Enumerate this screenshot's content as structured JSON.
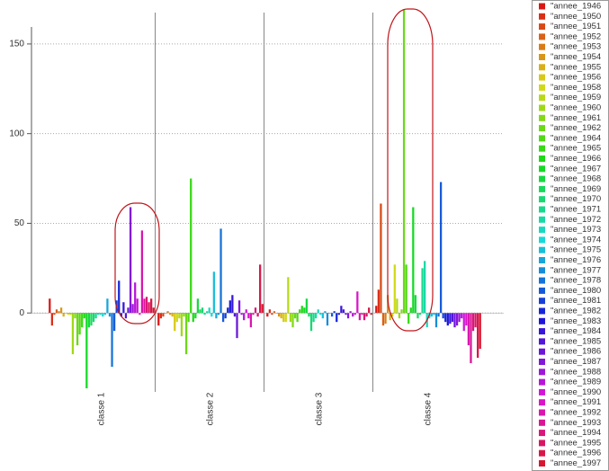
{
  "chart_data": {
    "type": "bar",
    "categories": [
      "classe 1",
      "classe 2",
      "classe 3",
      "classe 4"
    ],
    "ylim": [
      -44,
      170
    ],
    "yticks": [
      0,
      50,
      100,
      150
    ],
    "grid": true,
    "series": [
      {
        "name": "\"annee_1946",
        "color": "#d91616",
        "values": [
          8,
          -7,
          -2,
          4
        ]
      },
      {
        "name": "\"annee_1950",
        "color": "#d92f16",
        "values": [
          -7,
          -3,
          2,
          13
        ]
      },
      {
        "name": "\"annee_1951",
        "color": "#d94916",
        "values": [
          -1,
          -2,
          -1,
          61
        ]
      },
      {
        "name": "\"annee_1952",
        "color": "#d96216",
        "values": [
          2,
          0,
          1,
          -7
        ]
      },
      {
        "name": "\"annee_1953",
        "color": "#d97c16",
        "values": [
          1,
          1,
          0,
          -6
        ]
      },
      {
        "name": "\"annee_1954",
        "color": "#d99516",
        "values": [
          3,
          -1,
          -2,
          10
        ]
      },
      {
        "name": "\"annee_1955",
        "color": "#d9af16",
        "values": [
          -2,
          -2,
          -3,
          -4
        ]
      },
      {
        "name": "\"annee_1956",
        "color": "#d9c816",
        "values": [
          0,
          -10,
          -5,
          -2
        ]
      },
      {
        "name": "\"annee_1958",
        "color": "#d1d916",
        "values": [
          -1,
          -5,
          -5,
          27
        ]
      },
      {
        "name": "\"annee_1959",
        "color": "#b7d916",
        "values": [
          -1,
          -3,
          20,
          8
        ]
      },
      {
        "name": "\"annee_1960",
        "color": "#9ed916",
        "values": [
          -23,
          -13,
          -5,
          -3
        ]
      },
      {
        "name": "\"annee_1961",
        "color": "#84d916",
        "values": [
          -3,
          -2,
          -8,
          2
        ]
      },
      {
        "name": "\"annee_1962",
        "color": "#6bd916",
        "values": [
          -18,
          -23,
          -3,
          169
        ]
      },
      {
        "name": "\"annee_1964",
        "color": "#51d916",
        "values": [
          -12,
          -5,
          -5,
          27
        ]
      },
      {
        "name": "\"annee_1965",
        "color": "#38d916",
        "values": [
          -8,
          75,
          2,
          -6
        ]
      },
      {
        "name": "\"annee_1966",
        "color": "#1ed916",
        "values": [
          -3,
          -5,
          4,
          3
        ]
      },
      {
        "name": "\"annee_1967",
        "color": "#16d927",
        "values": [
          -42,
          -3,
          3,
          59
        ]
      },
      {
        "name": "\"annee_1968",
        "color": "#16d940",
        "values": [
          -8,
          8,
          8,
          10
        ]
      },
      {
        "name": "\"annee_1969",
        "color": "#16d95a",
        "values": [
          -7,
          2,
          -2,
          -3
        ]
      },
      {
        "name": "\"annee_1970",
        "color": "#16d973",
        "values": [
          -5,
          3,
          -10,
          -1
        ]
      },
      {
        "name": "\"annee_1971",
        "color": "#16d98d",
        "values": [
          -3,
          -1,
          -5,
          25
        ]
      },
      {
        "name": "\"annee_1972",
        "color": "#16d9a6",
        "values": [
          -1,
          1,
          -3,
          29
        ]
      },
      {
        "name": "\"annee_1973",
        "color": "#16d9c0",
        "values": [
          -1,
          3,
          2,
          -8
        ]
      },
      {
        "name": "\"annee_1974",
        "color": "#16d9d9",
        "values": [
          -2,
          -2,
          -1,
          -3
        ]
      },
      {
        "name": "\"annee_1975",
        "color": "#16c0d9",
        "values": [
          -1,
          23,
          -3,
          -2
        ]
      },
      {
        "name": "\"annee_1976",
        "color": "#16a6d9",
        "values": [
          8,
          -3,
          1,
          -1
        ]
      },
      {
        "name": "\"annee_1977",
        "color": "#168dd9",
        "values": [
          -2,
          -1,
          -7,
          -8
        ]
      },
      {
        "name": "\"annee_1978",
        "color": "#1673d9",
        "values": [
          -30,
          47,
          0,
          -2
        ]
      },
      {
        "name": "\"annee_1980",
        "color": "#165ad9",
        "values": [
          -10,
          -5,
          -2,
          73
        ]
      },
      {
        "name": "\"annee_1981",
        "color": "#1640d9",
        "values": [
          7,
          -3,
          1,
          -3
        ]
      },
      {
        "name": "\"annee_1982",
        "color": "#1627d9",
        "values": [
          18,
          3,
          -5,
          -5
        ]
      },
      {
        "name": "\"annee_1983",
        "color": "#1e16d9",
        "values": [
          -2,
          7,
          -1,
          -7
        ]
      },
      {
        "name": "\"annee_1984",
        "color": "#3816d9",
        "values": [
          6,
          10,
          4,
          -6
        ]
      },
      {
        "name": "\"annee_1985",
        "color": "#5116d9",
        "values": [
          -3,
          -2,
          2,
          -5
        ]
      },
      {
        "name": "\"annee_1986",
        "color": "#6b16d9",
        "values": [
          3,
          -14,
          -1,
          -8
        ]
      },
      {
        "name": "\"annee_1987",
        "color": "#8416d9",
        "values": [
          59,
          7,
          -3,
          -7
        ]
      },
      {
        "name": "\"annee_1988",
        "color": "#9e16d9",
        "values": [
          5,
          -1,
          1,
          -5
        ]
      },
      {
        "name": "\"annee_1989",
        "color": "#b716d9",
        "values": [
          17,
          -4,
          -2,
          -3
        ]
      },
      {
        "name": "\"annee_1990",
        "color": "#d116d9",
        "values": [
          8,
          2,
          -1,
          -10
        ]
      },
      {
        "name": "\"annee_1991",
        "color": "#d916c8",
        "values": [
          -1,
          -3,
          12,
          -7
        ]
      },
      {
        "name": "\"annee_1992",
        "color": "#d916af",
        "values": [
          46,
          -8,
          -4,
          -18
        ]
      },
      {
        "name": "\"annee_1993",
        "color": "#d91695",
        "values": [
          8,
          -1,
          -1,
          -28
        ]
      },
      {
        "name": "\"annee_1994",
        "color": "#d9167c",
        "values": [
          9,
          3,
          -4,
          -10
        ]
      },
      {
        "name": "\"annee_1995",
        "color": "#d91662",
        "values": [
          6,
          -2,
          -2,
          -8
        ]
      },
      {
        "name": "\"annee_1996",
        "color": "#d91649",
        "values": [
          8,
          27,
          3,
          -25
        ]
      },
      {
        "name": "\"annee_1997",
        "color": "#d9162f",
        "values": [
          3,
          5,
          -1,
          -20
        ]
      }
    ]
  }
}
